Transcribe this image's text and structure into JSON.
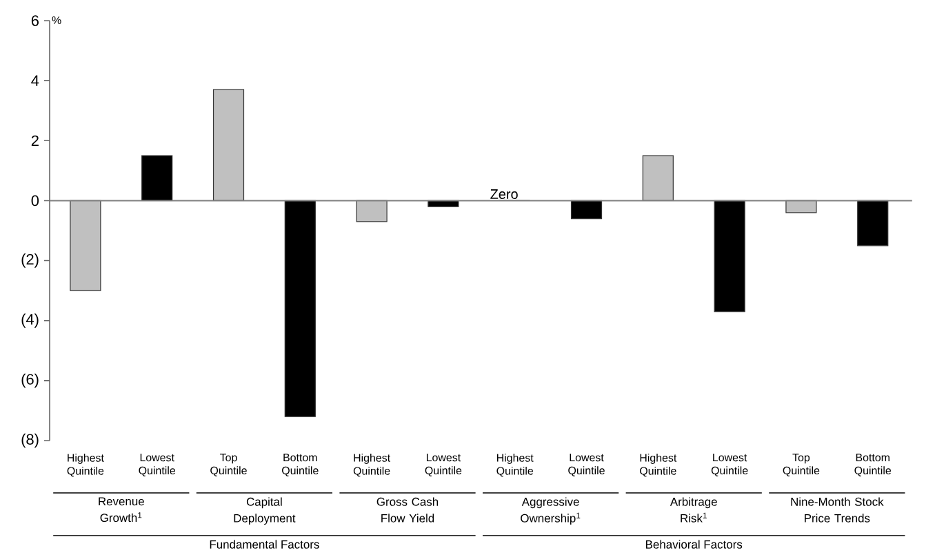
{
  "chart_data": {
    "type": "bar",
    "ylabel": "%",
    "categories": [
      "Highest Quintile",
      "Lowest Quintile",
      "Top Quintile",
      "Bottom Quintile",
      "Highest Quintile",
      "Lowest Quintile",
      "Highest Quintile",
      "Lowest Quintile",
      "Highest Quintile",
      "Lowest Quintile",
      "Top Quintile",
      "Bottom Quintile"
    ],
    "values": [
      -3.0,
      1.5,
      3.7,
      -7.2,
      -0.7,
      -0.2,
      0,
      -0.6,
      1.5,
      -3.7,
      -0.4,
      -1.5
    ],
    "colors": [
      "#c0c0c0",
      "#000000",
      "#c0c0c0",
      "#000000",
      "#c0c0c0",
      "#000000",
      "#c0c0c0",
      "#000000",
      "#c0c0c0",
      "#000000",
      "#c0c0c0",
      "#000000"
    ],
    "ylim": [
      -8,
      6
    ],
    "yticks": [
      {
        "value": -8,
        "label": "(8)"
      },
      {
        "value": -6,
        "label": "(6)"
      },
      {
        "value": -4,
        "label": "(4)"
      },
      {
        "value": -2,
        "label": "(2)"
      },
      0,
      2,
      4,
      6
    ],
    "ref_lines": [
      {
        "axis": "y",
        "value": 0,
        "label": "Zero",
        "color": "#808080"
      }
    ],
    "annotations": [
      "Revenue Growth$^{1}$",
      "Capital Deployment",
      "Gross Cash Flow Yield",
      "Aggressive Ownership$^{1}$",
      "Arbitrage Risk$^{1}$",
      "Nine-Month Stock Price Trends",
      "Fundamental Factors",
      "Behavioral Factors"
    ]
  }
}
